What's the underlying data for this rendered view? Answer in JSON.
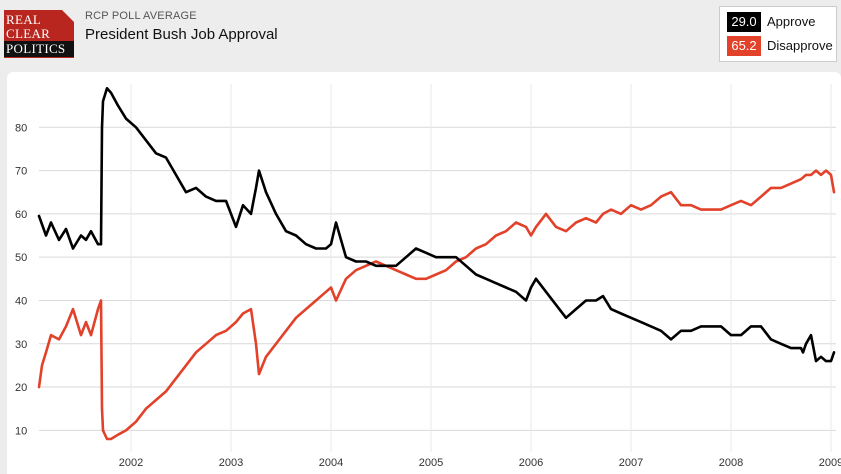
{
  "header": {
    "logo": [
      "REAL",
      "CLEAR",
      "POLITICS"
    ],
    "supertitle": "RCP POLL AVERAGE",
    "title": "President Bush Job Approval"
  },
  "legend": {
    "items": [
      {
        "value": "29.0",
        "label": "Approve",
        "color": "#000000"
      },
      {
        "value": "65.2",
        "label": "Disapprove",
        "color": "#e2412a"
      }
    ]
  },
  "chart_data": {
    "type": "line",
    "title": "President Bush Job Approval",
    "ylim": [
      5,
      90
    ],
    "y_ticks": [
      10,
      20,
      30,
      40,
      50,
      60,
      70,
      80
    ],
    "x_ticks": [
      "2002",
      "2003",
      "2004",
      "2005",
      "2006",
      "2007",
      "2008",
      "2009"
    ],
    "xlim": [
      2001.08,
      2009.05
    ],
    "grid": true,
    "legend_position": "top-right",
    "series": [
      {
        "name": "Approve",
        "color": "#000000",
        "x": [
          2001.08,
          2001.15,
          2001.2,
          2001.28,
          2001.35,
          2001.42,
          2001.5,
          2001.55,
          2001.6,
          2001.67,
          2001.7,
          2001.71,
          2001.72,
          2001.76,
          2001.8,
          2001.87,
          2001.95,
          2002.05,
          2002.15,
          2002.25,
          2002.35,
          2002.45,
          2002.55,
          2002.65,
          2002.75,
          2002.85,
          2002.95,
          2003.05,
          2003.12,
          2003.2,
          2003.25,
          2003.28,
          2003.35,
          2003.45,
          2003.55,
          2003.65,
          2003.75,
          2003.85,
          2003.95,
          2004.0,
          2004.05,
          2004.15,
          2004.25,
          2004.35,
          2004.45,
          2004.55,
          2004.65,
          2004.75,
          2004.85,
          2004.95,
          2005.05,
          2005.15,
          2005.25,
          2005.35,
          2005.45,
          2005.55,
          2005.65,
          2005.75,
          2005.85,
          2005.95,
          2006.0,
          2006.05,
          2006.15,
          2006.25,
          2006.35,
          2006.45,
          2006.55,
          2006.65,
          2006.72,
          2006.8,
          2006.9,
          2007.0,
          2007.1,
          2007.2,
          2007.3,
          2007.4,
          2007.5,
          2007.6,
          2007.7,
          2007.8,
          2007.9,
          2008.0,
          2008.1,
          2008.2,
          2008.3,
          2008.4,
          2008.5,
          2008.6,
          2008.7,
          2008.72,
          2008.75,
          2008.8,
          2008.85,
          2008.9,
          2008.95,
          2009.0,
          2009.03
        ],
        "y": [
          59.5,
          55,
          58,
          54,
          56.5,
          52,
          55,
          54,
          56,
          53,
          53,
          80,
          86,
          89,
          88,
          85,
          82,
          80,
          77,
          74,
          73,
          69,
          65,
          66,
          64,
          63,
          63,
          57,
          62,
          60,
          66,
          70,
          65,
          60,
          56,
          55,
          53,
          52,
          52,
          53,
          58,
          50,
          49,
          49,
          48,
          48,
          48,
          50,
          52,
          51,
          50,
          50,
          50,
          48,
          46,
          45,
          44,
          43,
          42,
          40,
          43,
          45,
          42,
          39,
          36,
          38,
          40,
          40,
          41,
          38,
          37,
          36,
          35,
          34,
          33,
          31,
          33,
          33,
          34,
          34,
          34,
          32,
          32,
          34,
          34,
          31,
          30,
          29,
          29,
          28,
          30,
          32,
          26,
          27,
          26,
          26,
          28
        ]
      },
      {
        "name": "Disapprove",
        "color": "#e2412a",
        "x": [
          2001.08,
          2001.11,
          2001.15,
          2001.2,
          2001.28,
          2001.35,
          2001.42,
          2001.5,
          2001.55,
          2001.6,
          2001.67,
          2001.7,
          2001.71,
          2001.72,
          2001.76,
          2001.8,
          2001.87,
          2001.95,
          2002.05,
          2002.15,
          2002.25,
          2002.35,
          2002.45,
          2002.55,
          2002.65,
          2002.75,
          2002.85,
          2002.95,
          2003.05,
          2003.12,
          2003.2,
          2003.25,
          2003.28,
          2003.35,
          2003.45,
          2003.55,
          2003.65,
          2003.75,
          2003.85,
          2003.95,
          2004.0,
          2004.05,
          2004.15,
          2004.25,
          2004.35,
          2004.45,
          2004.55,
          2004.65,
          2004.75,
          2004.85,
          2004.95,
          2005.05,
          2005.15,
          2005.25,
          2005.35,
          2005.45,
          2005.55,
          2005.65,
          2005.75,
          2005.85,
          2005.95,
          2006.0,
          2006.05,
          2006.15,
          2006.25,
          2006.35,
          2006.45,
          2006.55,
          2006.65,
          2006.72,
          2006.8,
          2006.9,
          2007.0,
          2007.1,
          2007.2,
          2007.3,
          2007.4,
          2007.5,
          2007.6,
          2007.7,
          2007.8,
          2007.9,
          2008.0,
          2008.1,
          2008.2,
          2008.3,
          2008.4,
          2008.5,
          2008.6,
          2008.7,
          2008.75,
          2008.8,
          2008.85,
          2008.9,
          2008.95,
          2009.0,
          2009.03
        ],
        "y": [
          20,
          25,
          28,
          32,
          31,
          34,
          38,
          32,
          35,
          32,
          38,
          40,
          15,
          10,
          8,
          8,
          9,
          10,
          12,
          15,
          17,
          19,
          22,
          25,
          28,
          30,
          32,
          33,
          35,
          37,
          38,
          30,
          23,
          27,
          30,
          33,
          36,
          38,
          40,
          42,
          43,
          40,
          45,
          47,
          48,
          49,
          48,
          47,
          46,
          45,
          45,
          46,
          47,
          49,
          50,
          52,
          53,
          55,
          56,
          58,
          57,
          55,
          57,
          60,
          57,
          56,
          58,
          59,
          58,
          60,
          61,
          60,
          62,
          61,
          62,
          64,
          65,
          62,
          62,
          61,
          61,
          61,
          62,
          63,
          62,
          64,
          66,
          66,
          67,
          68,
          69,
          69,
          70,
          69,
          70,
          69,
          65
        ]
      }
    ]
  }
}
